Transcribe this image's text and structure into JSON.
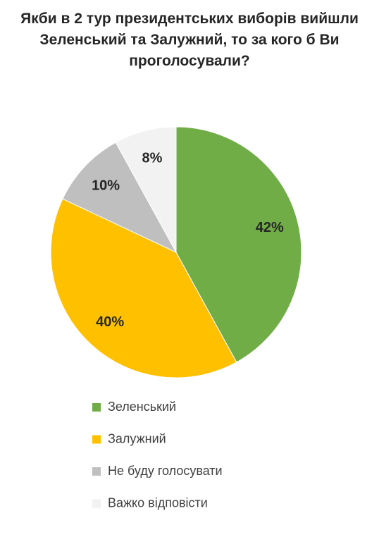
{
  "chart_data": {
    "type": "pie",
    "title": "Якби в 2 тур президентських виборів вийшли Зеленський та Залужний, то за кого б Ви проголосували?",
    "categories": [
      "Зеленський",
      "Залужний",
      "Не буду голосувати",
      "Важко відповісти"
    ],
    "values": [
      42,
      40,
      10,
      8
    ],
    "value_labels": [
      "42%",
      "40%",
      "10%",
      "8%"
    ],
    "colors": [
      "#70ad47",
      "#ffc000",
      "#bfbfbf",
      "#f2f2f2"
    ]
  }
}
